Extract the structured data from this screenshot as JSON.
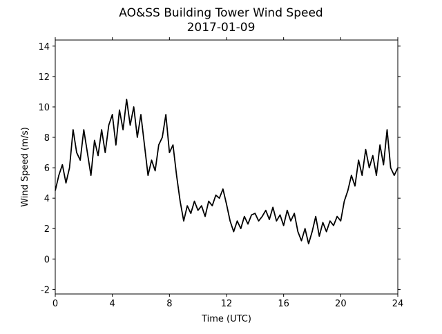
{
  "chart_data": {
    "type": "line",
    "title": "AO&SS Building Tower Wind Speed",
    "subtitle": "2017-01-09",
    "x_label": "Time (UTC)",
    "y_label": "Wind Speed (m/s)",
    "xlim": [
      0,
      24
    ],
    "xticks": [
      0,
      4,
      8,
      12,
      16,
      20,
      24
    ],
    "ylim": [
      -2.3,
      14.4
    ],
    "yticks": [
      -2,
      0,
      2,
      4,
      6,
      8,
      10,
      12,
      14
    ],
    "x": [
      0,
      0.25,
      0.5,
      0.75,
      1,
      1.25,
      1.5,
      1.75,
      2,
      2.25,
      2.5,
      2.75,
      3,
      3.25,
      3.5,
      3.75,
      4,
      4.25,
      4.5,
      4.75,
      5,
      5.25,
      5.5,
      5.75,
      6,
      6.25,
      6.5,
      6.75,
      7,
      7.25,
      7.5,
      7.75,
      8,
      8.25,
      8.5,
      8.75,
      9,
      9.25,
      9.5,
      9.75,
      10,
      10.25,
      10.5,
      10.75,
      11,
      11.25,
      11.5,
      11.75,
      12,
      12.25,
      12.5,
      12.75,
      13,
      13.25,
      13.5,
      13.75,
      14,
      14.25,
      14.5,
      14.75,
      15,
      15.25,
      15.5,
      15.75,
      16,
      16.25,
      16.5,
      16.75,
      17,
      17.25,
      17.5,
      17.75,
      18,
      18.25,
      18.5,
      18.75,
      19,
      19.25,
      19.5,
      19.75,
      20,
      20.25,
      20.5,
      20.75,
      21,
      21.25,
      21.5,
      21.75,
      22,
      22.25,
      22.5,
      22.75,
      23,
      23.25,
      23.5,
      23.75,
      24
    ],
    "series": [
      {
        "color": "#000000",
        "values": [
          4.5,
          5.5,
          6.2,
          5.0,
          6.0,
          8.5,
          7.0,
          6.5,
          8.5,
          7.0,
          5.5,
          7.8,
          6.8,
          8.5,
          7.0,
          8.8,
          9.5,
          7.5,
          9.8,
          8.5,
          10.5,
          8.8,
          10.0,
          8.0,
          9.5,
          7.5,
          5.5,
          6.5,
          5.8,
          7.5,
          8.0,
          9.5,
          7.0,
          7.5,
          5.5,
          3.8,
          2.5,
          3.5,
          3.0,
          3.8,
          3.2,
          3.5,
          2.8,
          3.8,
          3.5,
          4.2,
          4.0,
          4.6,
          3.6,
          2.5,
          1.8,
          2.5,
          2.0,
          2.8,
          2.3,
          2.9,
          3.0,
          2.5,
          2.8,
          3.2,
          2.6,
          3.4,
          2.5,
          2.9,
          2.2,
          3.2,
          2.5,
          3.0,
          1.8,
          1.2,
          2.0,
          1.0,
          1.8,
          2.8,
          1.5,
          2.4,
          1.8,
          2.5,
          2.2,
          2.8,
          2.5,
          3.8,
          4.5,
          5.5,
          4.8,
          6.5,
          5.5,
          7.2,
          6.0,
          6.8,
          5.5,
          7.5,
          6.2,
          8.5,
          6.0,
          5.5,
          6.0
        ]
      }
    ]
  }
}
